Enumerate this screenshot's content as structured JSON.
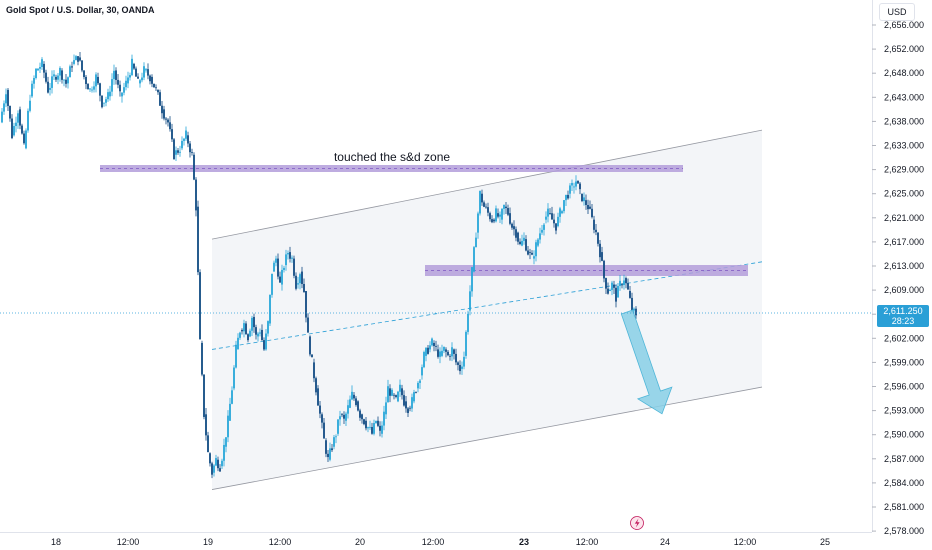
{
  "header": {
    "symbol_title": "Gold Spot / U.S. Dollar, 30, OANDA",
    "currency_button": "USD"
  },
  "colors": {
    "up": "#26a6d9",
    "down": "#0f4a82",
    "zone_fill": "#b39ddb",
    "zone_line": "#7e57c2",
    "channel_fill": "#f3f5f8",
    "arrow": "#87cfe6",
    "price_label": "#2a9fd6"
  },
  "chart_data": {
    "type": "candlestick",
    "title": "Gold Spot / U.S. Dollar, 30, OANDA",
    "y_unit": "USD",
    "ylim": [
      2576.0,
      2657.5
    ],
    "y_ticks": [
      "2,656.000",
      "2,652.000",
      "2,648.000",
      "2,643.000",
      "2,638.000",
      "2,633.000",
      "2,629.000",
      "2,625.000",
      "2,621.000",
      "2,617.000",
      "2,613.000",
      "2,609.000",
      "2,605.000",
      "2,602.000",
      "2,599.000",
      "2,596.000",
      "2,593.000",
      "2,590.000",
      "2,587.000",
      "2,584.000",
      "2,581.000",
      "2,578.000"
    ],
    "x_ticks": [
      {
        "label": "18",
        "bold": false
      },
      {
        "label": "12:00",
        "bold": false
      },
      {
        "label": "19",
        "bold": false
      },
      {
        "label": "12:00",
        "bold": false
      },
      {
        "label": "20",
        "bold": false
      },
      {
        "label": "12:00",
        "bold": false
      },
      {
        "label": "23",
        "bold": true
      },
      {
        "label": "12:00",
        "bold": false
      },
      {
        "label": "24",
        "bold": false
      },
      {
        "label": "12:00",
        "bold": false
      },
      {
        "label": "25",
        "bold": false
      }
    ],
    "current_price": {
      "value": "2,611.250",
      "countdown": "28:23"
    },
    "price_path": [
      [
        0,
        2641
      ],
      [
        6,
        2646
      ],
      [
        12,
        2639
      ],
      [
        18,
        2643
      ],
      [
        24,
        2637
      ],
      [
        30,
        2645
      ],
      [
        36,
        2649
      ],
      [
        42,
        2650
      ],
      [
        48,
        2646
      ],
      [
        54,
        2648
      ],
      [
        60,
        2649
      ],
      [
        66,
        2647
      ],
      [
        72,
        2650
      ],
      [
        78,
        2651
      ],
      [
        84,
        2648
      ],
      [
        90,
        2646
      ],
      [
        96,
        2648
      ],
      [
        102,
        2644
      ],
      [
        108,
        2645
      ],
      [
        114,
        2649
      ],
      [
        120,
        2645
      ],
      [
        126,
        2647
      ],
      [
        132,
        2650
      ],
      [
        138,
        2647
      ],
      [
        144,
        2649
      ],
      [
        150,
        2648
      ],
      [
        156,
        2646
      ],
      [
        162,
        2643
      ],
      [
        168,
        2641
      ],
      [
        174,
        2636
      ],
      [
        180,
        2637
      ],
      [
        186,
        2639
      ],
      [
        192,
        2636
      ],
      [
        196,
        2628
      ],
      [
        200,
        2607
      ],
      [
        204,
        2596
      ],
      [
        208,
        2590
      ],
      [
        212,
        2587
      ],
      [
        216,
        2589
      ],
      [
        220,
        2588
      ],
      [
        224,
        2591
      ],
      [
        228,
        2595
      ],
      [
        232,
        2600
      ],
      [
        236,
        2606
      ],
      [
        240,
        2609
      ],
      [
        244,
        2610
      ],
      [
        248,
        2608
      ],
      [
        252,
        2611
      ],
      [
        256,
        2608
      ],
      [
        260,
        2609
      ],
      [
        264,
        2606
      ],
      [
        268,
        2610
      ],
      [
        272,
        2618
      ],
      [
        276,
        2620
      ],
      [
        280,
        2616
      ],
      [
        284,
        2619
      ],
      [
        288,
        2621
      ],
      [
        292,
        2620
      ],
      [
        296,
        2616
      ],
      [
        300,
        2618
      ],
      [
        304,
        2615
      ],
      [
        308,
        2608
      ],
      [
        312,
        2604
      ],
      [
        316,
        2600
      ],
      [
        320,
        2596
      ],
      [
        324,
        2592
      ],
      [
        328,
        2589
      ],
      [
        332,
        2591
      ],
      [
        336,
        2593
      ],
      [
        340,
        2596
      ],
      [
        344,
        2595
      ],
      [
        348,
        2597
      ],
      [
        352,
        2599
      ],
      [
        356,
        2598
      ],
      [
        360,
        2596
      ],
      [
        364,
        2595
      ],
      [
        368,
        2594
      ],
      [
        372,
        2593
      ],
      [
        376,
        2595
      ],
      [
        380,
        2593
      ],
      [
        384,
        2596
      ],
      [
        388,
        2600
      ],
      [
        392,
        2599
      ],
      [
        396,
        2598
      ],
      [
        400,
        2600
      ],
      [
        404,
        2598
      ],
      [
        408,
        2597
      ],
      [
        412,
        2598
      ],
      [
        416,
        2600
      ],
      [
        420,
        2602
      ],
      [
        424,
        2605
      ],
      [
        428,
        2606
      ],
      [
        432,
        2607
      ],
      [
        436,
        2606
      ],
      [
        440,
        2605
      ],
      [
        444,
        2606
      ],
      [
        448,
        2605
      ],
      [
        452,
        2606
      ],
      [
        456,
        2604
      ],
      [
        460,
        2603
      ],
      [
        464,
        2605
      ],
      [
        468,
        2612
      ],
      [
        472,
        2618
      ],
      [
        476,
        2624
      ],
      [
        480,
        2630
      ],
      [
        484,
        2628
      ],
      [
        488,
        2627
      ],
      [
        492,
        2626
      ],
      [
        496,
        2627
      ],
      [
        500,
        2626
      ],
      [
        504,
        2628
      ],
      [
        508,
        2627
      ],
      [
        512,
        2625
      ],
      [
        516,
        2624
      ],
      [
        520,
        2622
      ],
      [
        524,
        2623
      ],
      [
        528,
        2621
      ],
      [
        532,
        2620
      ],
      [
        536,
        2622
      ],
      [
        540,
        2624
      ],
      [
        544,
        2626
      ],
      [
        548,
        2627
      ],
      [
        552,
        2626
      ],
      [
        556,
        2625
      ],
      [
        560,
        2627
      ],
      [
        564,
        2629
      ],
      [
        568,
        2630
      ],
      [
        572,
        2631
      ],
      [
        576,
        2632
      ],
      [
        580,
        2630
      ],
      [
        584,
        2629
      ],
      [
        588,
        2628
      ],
      [
        592,
        2626
      ],
      [
        596,
        2624
      ],
      [
        600,
        2621
      ],
      [
        604,
        2617
      ],
      [
        608,
        2615
      ],
      [
        612,
        2616
      ],
      [
        616,
        2614
      ],
      [
        620,
        2616
      ],
      [
        624,
        2617
      ],
      [
        628,
        2615
      ],
      [
        632,
        2612
      ],
      [
        636,
        2611.25
      ]
    ],
    "annotations": {
      "label": "touched the s&d zone",
      "supply_zone": {
        "price_top": 2633.9,
        "price_bottom": 2633.0
      },
      "resistance_zone": {
        "price_top": 2618.6,
        "price_bottom": 2617.1
      },
      "channel": {
        "upper": [
          [
            212,
            2623.0
          ],
          [
            762,
            2639.8
          ]
        ],
        "lower": [
          [
            212,
            2584.4
          ],
          [
            762,
            2600.2
          ]
        ],
        "mid": [
          [
            212,
            2606.0
          ],
          [
            762,
            2619.5
          ]
        ]
      },
      "arrow": {
        "from": [
          627,
          2613.0
        ],
        "to": [
          662,
          2597.0
        ]
      }
    }
  }
}
